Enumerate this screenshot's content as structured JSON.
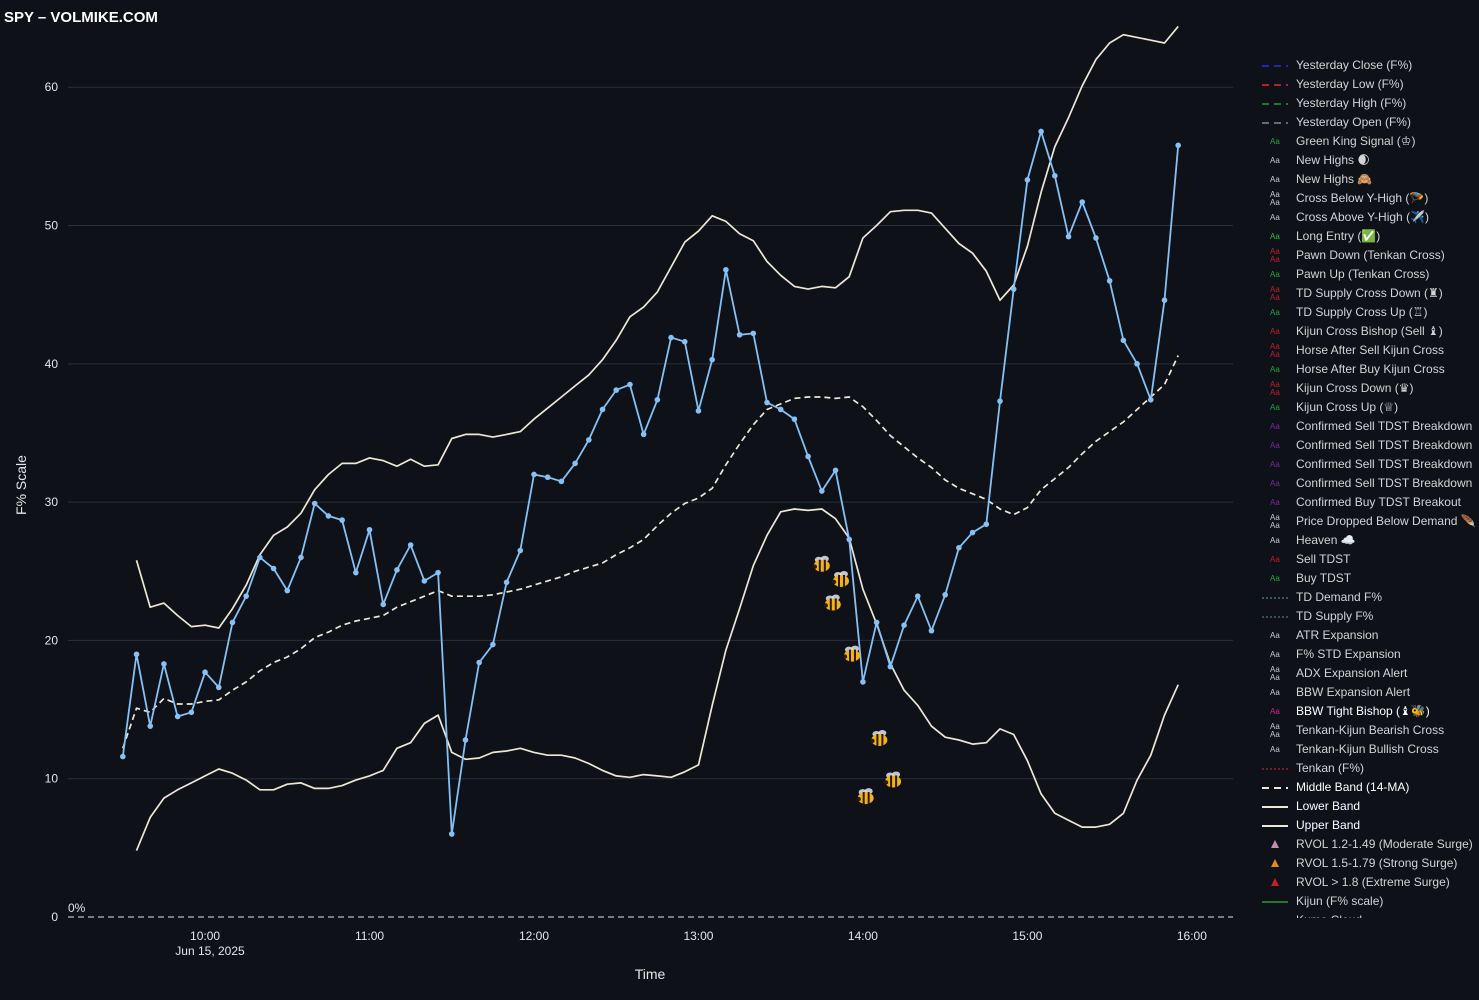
{
  "title": "SPY – VOLMIKE.COM",
  "chart_data": {
    "type": "line",
    "xlabel": "Time",
    "ylabel": "F% Scale",
    "date_label": "Jun 15, 2025",
    "zero_label": "0%",
    "x_ticks": [
      "10:00",
      "11:00",
      "12:00",
      "13:00",
      "14:00",
      "15:00",
      "16:00"
    ],
    "y_ticks": [
      0,
      10,
      20,
      30,
      40,
      50,
      60
    ],
    "xlim": [
      "09:10",
      "16:15"
    ],
    "ylim": [
      0,
      64.5
    ],
    "grid": true,
    "legend_position": "right",
    "x": [
      "09:30",
      "09:35",
      "09:40",
      "09:45",
      "09:50",
      "09:55",
      "10:00",
      "10:05",
      "10:10",
      "10:15",
      "10:20",
      "10:25",
      "10:30",
      "10:35",
      "10:40",
      "10:45",
      "10:50",
      "10:55",
      "11:00",
      "11:05",
      "11:10",
      "11:15",
      "11:20",
      "11:25",
      "11:30",
      "11:35",
      "11:40",
      "11:45",
      "11:50",
      "11:55",
      "12:00",
      "12:05",
      "12:10",
      "12:15",
      "12:20",
      "12:25",
      "12:30",
      "12:35",
      "12:40",
      "12:45",
      "12:50",
      "12:55",
      "13:00",
      "13:05",
      "13:10",
      "13:15",
      "13:20",
      "13:25",
      "13:30",
      "13:35",
      "13:40",
      "13:45",
      "13:50",
      "13:55",
      "14:00",
      "14:05",
      "14:10",
      "14:15",
      "14:20",
      "14:25",
      "14:30",
      "14:35",
      "14:40",
      "14:45",
      "14:50",
      "14:55",
      "15:00",
      "15:05",
      "15:10",
      "15:15",
      "15:20",
      "15:25",
      "15:30",
      "15:35",
      "15:40",
      "15:45",
      "15:50",
      "15:55"
    ],
    "series": [
      {
        "name": "Upper Band",
        "color": "#efe7d6",
        "style": "solid",
        "values": [
          null,
          25.8,
          22.4,
          22.7,
          21.8,
          21.0,
          21.1,
          20.9,
          22.3,
          24.0,
          26.2,
          27.6,
          28.2,
          29.2,
          30.9,
          32.0,
          32.8,
          32.8,
          33.2,
          33.0,
          32.6,
          33.1,
          32.6,
          32.7,
          34.6,
          34.9,
          34.9,
          34.7,
          34.9,
          35.1,
          36.0,
          36.8,
          37.6,
          38.4,
          39.2,
          40.3,
          41.7,
          43.4,
          44.1,
          45.2,
          47.0,
          48.8,
          49.6,
          50.7,
          50.3,
          49.4,
          48.9,
          47.4,
          46.4,
          45.6,
          45.4,
          45.6,
          45.5,
          46.3,
          49.1,
          50.0,
          51.0,
          51.1,
          51.1,
          50.9,
          49.8,
          48.7,
          48.0,
          46.7,
          44.6,
          45.7,
          48.5,
          52.4,
          55.7,
          57.8,
          60.1,
          62.0,
          63.2,
          63.8,
          63.6,
          63.4,
          63.2,
          64.4
        ]
      },
      {
        "name": "Middle Band (14-MA)",
        "color": "#efe7d6",
        "style": "dashed",
        "values": [
          12.2,
          15.1,
          14.8,
          15.8,
          15.4,
          15.4,
          15.6,
          15.7,
          16.4,
          17.0,
          17.8,
          18.4,
          18.8,
          19.4,
          20.2,
          20.6,
          21.1,
          21.4,
          21.6,
          21.8,
          22.4,
          22.8,
          23.2,
          23.6,
          23.2,
          23.2,
          23.2,
          23.3,
          23.5,
          23.7,
          24.0,
          24.3,
          24.6,
          25.0,
          25.3,
          25.6,
          26.2,
          26.7,
          27.3,
          28.3,
          29.2,
          29.9,
          30.3,
          31.0,
          32.7,
          34.2,
          35.6,
          36.7,
          37.1,
          37.5,
          37.6,
          37.6,
          37.5,
          37.6,
          36.9,
          35.9,
          34.8,
          34.0,
          33.2,
          32.5,
          31.6,
          31.0,
          30.6,
          30.2,
          29.5,
          29.1,
          29.6,
          30.9,
          31.7,
          32.5,
          33.5,
          34.4,
          35.1,
          35.8,
          36.7,
          37.6,
          38.5,
          40.6
        ]
      },
      {
        "name": "Lower Band",
        "color": "#efe7d6",
        "style": "solid",
        "values": [
          null,
          4.8,
          7.2,
          8.6,
          9.2,
          9.7,
          10.2,
          10.7,
          10.4,
          9.9,
          9.2,
          9.2,
          9.6,
          9.7,
          9.3,
          9.3,
          9.5,
          9.9,
          10.2,
          10.6,
          12.2,
          12.6,
          14.0,
          14.6,
          11.9,
          11.4,
          11.5,
          11.9,
          12.0,
          12.2,
          11.9,
          11.7,
          11.7,
          11.5,
          11.1,
          10.6,
          10.2,
          10.1,
          10.3,
          10.2,
          10.1,
          10.5,
          11.0,
          15.3,
          19.3,
          22.3,
          25.4,
          27.6,
          29.3,
          29.5,
          29.4,
          29.5,
          28.8,
          27.4,
          23.7,
          21.2,
          18.3,
          16.4,
          15.3,
          13.8,
          13.0,
          12.8,
          12.5,
          12.6,
          13.6,
          13.2,
          11.3,
          8.9,
          7.5,
          7.0,
          6.5,
          6.5,
          6.7,
          7.5,
          9.9,
          11.7,
          14.6,
          16.8
        ]
      },
      {
        "name": "F%",
        "color": "#85c1f5",
        "style": "solid-markers",
        "values": [
          11.6,
          19.0,
          13.8,
          18.3,
          14.5,
          14.8,
          17.7,
          16.6,
          21.3,
          23.2,
          26.0,
          25.2,
          23.6,
          26.0,
          29.9,
          29.0,
          28.7,
          24.9,
          28.0,
          22.6,
          25.1,
          26.9,
          24.3,
          24.9,
          6.0,
          12.8,
          18.4,
          19.7,
          24.2,
          26.5,
          32.0,
          31.8,
          31.5,
          32.8,
          34.5,
          36.7,
          38.1,
          38.5,
          34.9,
          37.4,
          41.9,
          41.6,
          36.6,
          40.3,
          46.8,
          42.1,
          42.2,
          37.2,
          36.7,
          36.0,
          33.3,
          30.8,
          32.3,
          27.3,
          17.0,
          21.3,
          18.1,
          21.1,
          23.2,
          20.7,
          23.3,
          26.7,
          27.8,
          28.4,
          37.3,
          45.4,
          53.3,
          56.8,
          53.6,
          49.2,
          51.7,
          49.1,
          46.0,
          41.7,
          40.0,
          37.4,
          44.6,
          55.8
        ]
      }
    ],
    "bee_markers": [
      {
        "x": "13:45",
        "y": 25.4
      },
      {
        "x": "13:52",
        "y": 24.3
      },
      {
        "x": "13:49",
        "y": 22.6
      },
      {
        "x": "13:56",
        "y": 18.9
      },
      {
        "x": "14:06",
        "y": 12.8
      },
      {
        "x": "14:11",
        "y": 9.8
      },
      {
        "x": "14:01",
        "y": 8.6
      }
    ]
  },
  "legend": [
    {
      "label": "Yesterday Close (F%)",
      "sym": "dash",
      "color": "#1e2ab0"
    },
    {
      "label": "Yesterday Low (F%)",
      "sym": "dash",
      "color": "#b3202a"
    },
    {
      "label": "Yesterday High (F%)",
      "sym": "dash",
      "color": "#1e7a2a"
    },
    {
      "label": "Yesterday Open (F%)",
      "sym": "dash",
      "color": "#6a6a6a"
    },
    {
      "label": "Green King Signal (♔)",
      "sym": "aa",
      "color": "#1fa83a"
    },
    {
      "label": "New Highs 🌒",
      "sym": "aa",
      "color": "#c8c8c8"
    },
    {
      "label": "New Highs 🙈",
      "sym": "aa",
      "color": "#c8c8c8"
    },
    {
      "label": "Cross Below Y-High (🪂)",
      "sym": "aa2",
      "color": "#c8c8c8"
    },
    {
      "label": "Cross Above Y-High (✈️)",
      "sym": "aa",
      "color": "#c8c8c8"
    },
    {
      "label": "Long Entry (✅)",
      "sym": "aa",
      "color": "#22c23a"
    },
    {
      "label": "Pawn Down (Tenkan Cross)",
      "sym": "aa2",
      "color": "#c0202a"
    },
    {
      "label": "Pawn Up (Tenkan Cross)",
      "sym": "aa",
      "color": "#1fa83a"
    },
    {
      "label": "TD Supply Cross Down (♜)",
      "sym": "aa2",
      "color": "#c0202a"
    },
    {
      "label": "TD Supply Cross Up (♖)",
      "sym": "aa",
      "color": "#1fa83a"
    },
    {
      "label": "Kijun Cross Bishop (Sell ♝)",
      "sym": "aa",
      "color": "#c0202a"
    },
    {
      "label": "Horse After Sell Kijun Cross",
      "sym": "aa2",
      "color": "#c0202a"
    },
    {
      "label": "Horse After Buy Kijun Cross",
      "sym": "aa",
      "color": "#1fa83a"
    },
    {
      "label": "Kijun Cross Down (♛)",
      "sym": "aa2",
      "color": "#c0202a"
    },
    {
      "label": "Kijun Cross Up (♕)",
      "sym": "aa",
      "color": "#1fa83a"
    },
    {
      "label": "Confirmed Sell TDST Breakdown",
      "sym": "aa",
      "color": "#7a2aa0"
    },
    {
      "label": "Confirmed Sell TDST Breakdown",
      "sym": "aa",
      "color": "#7a2aa0"
    },
    {
      "label": "Confirmed Sell TDST Breakdown",
      "sym": "aa",
      "color": "#7a2aa0"
    },
    {
      "label": "Confirmed Sell TDST Breakdown",
      "sym": "aa",
      "color": "#7a2aa0"
    },
    {
      "label": "Confirmed Buy TDST Breakout",
      "sym": "aa",
      "color": "#7a2aa0"
    },
    {
      "label": "Price Dropped Below Demand 🪶",
      "sym": "aa2",
      "color": "#c8c8c8"
    },
    {
      "label": "Heaven ☁️",
      "sym": "aa",
      "color": "#c8c8c8"
    },
    {
      "label": "Sell TDST",
      "sym": "aa",
      "color": "#c0202a"
    },
    {
      "label": "Buy TDST",
      "sym": "aa",
      "color": "#1fa83a"
    },
    {
      "label": "TD Demand F%",
      "sym": "dot",
      "color": "#4a8a60"
    },
    {
      "label": "TD Supply F%",
      "sym": "dot",
      "color": "#4a7a80"
    },
    {
      "label": "ATR Expansion",
      "sym": "aa",
      "color": "#c8c8c8"
    },
    {
      "label": "F% STD Expansion",
      "sym": "aa",
      "color": "#c8c8c8"
    },
    {
      "label": "ADX Expansion Alert",
      "sym": "aa2",
      "color": "#c8c8c8"
    },
    {
      "label": "BBW Expansion Alert",
      "sym": "aa",
      "color": "#c8c8c8"
    },
    {
      "label": "BBW Tight Bishop (♝🐝)",
      "sym": "aa",
      "color": "#e0208a"
    },
    {
      "label": "Tenkan-Kijun Bearish Cross",
      "sym": "aa2",
      "color": "#c8c8c8"
    },
    {
      "label": "Tenkan-Kijun Bullish Cross",
      "sym": "aa",
      "color": "#c8c8c8"
    },
    {
      "label": "Tenkan (F%)",
      "sym": "dot",
      "color": "#c0202a"
    },
    {
      "label": "Middle Band (14-MA)",
      "sym": "dash",
      "color": "#efe7d6"
    },
    {
      "label": "Lower Band",
      "sym": "line",
      "color": "#efe7d6"
    },
    {
      "label": "Upper Band",
      "sym": "line",
      "color": "#efe7d6"
    },
    {
      "label": "RVOL 1.2-1.49 (Moderate Surge)",
      "sym": "tri",
      "color": "#c88ab0"
    },
    {
      "label": "RVOL 1.5-1.79 (Strong Surge)",
      "sym": "tri",
      "color": "#e08a18"
    },
    {
      "label": "RVOL > 1.8 (Extreme Surge)",
      "sym": "tri",
      "color": "#c0202a"
    },
    {
      "label": "Kijun (F% scale)",
      "sym": "line",
      "color": "#1e7a2a"
    },
    {
      "label": "Kumo Cloud",
      "sym": "line",
      "color": "#3a3a5a"
    }
  ]
}
